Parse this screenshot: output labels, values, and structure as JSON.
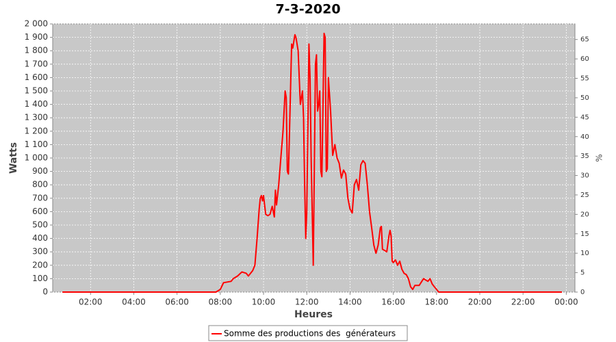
{
  "chart_data": {
    "type": "line",
    "title": "7-3-2020",
    "x_label": "Heures",
    "y_label": "Watts",
    "y2_label": "%",
    "x": [
      0.7,
      7.8,
      8.0,
      8.15,
      8.5,
      8.6,
      8.8,
      9.0,
      9.2,
      9.3,
      9.5,
      9.6,
      9.7,
      9.8,
      9.85,
      9.9,
      9.95,
      10.0,
      10.05,
      10.1,
      10.2,
      10.3,
      10.4,
      10.5,
      10.55,
      10.6,
      10.7,
      10.8,
      10.9,
      11.0,
      11.05,
      11.1,
      11.15,
      11.2,
      11.3,
      11.35,
      11.45,
      11.5,
      11.6,
      11.7,
      11.75,
      11.8,
      11.85,
      11.9,
      11.95,
      12.0,
      12.1,
      12.15,
      12.2,
      12.3,
      12.4,
      12.45,
      12.5,
      12.55,
      12.6,
      12.65,
      12.7,
      12.8,
      12.85,
      12.9,
      12.95,
      13.0,
      13.1,
      13.2,
      13.3,
      13.4,
      13.5,
      13.6,
      13.7,
      13.8,
      13.9,
      14.0,
      14.1,
      14.2,
      14.3,
      14.4,
      14.5,
      14.6,
      14.7,
      14.8,
      14.9,
      15.0,
      15.1,
      15.2,
      15.3,
      15.4,
      15.45,
      15.5,
      15.6,
      15.7,
      15.8,
      15.85,
      15.9,
      15.95,
      16.0,
      16.1,
      16.2,
      16.3,
      16.4,
      16.5,
      16.6,
      16.7,
      16.8,
      16.9,
      17.0,
      17.2,
      17.4,
      17.5,
      17.6,
      17.7,
      17.8,
      17.9,
      18.1,
      23.8
    ],
    "series": [
      {
        "name": "Somme des productions des  générateurs",
        "color": "#ff0000",
        "values": [
          0,
          0,
          20,
          70,
          80,
          100,
          120,
          150,
          140,
          120,
          160,
          200,
          400,
          620,
          700,
          720,
          680,
          720,
          650,
          580,
          570,
          580,
          640,
          560,
          760,
          650,
          800,
          1000,
          1200,
          1500,
          1450,
          900,
          880,
          1200,
          1850,
          1820,
          1920,
          1900,
          1800,
          1400,
          1450,
          1500,
          1300,
          800,
          400,
          600,
          1850,
          1600,
          1000,
          200,
          1700,
          1770,
          1350,
          1400,
          1500,
          900,
          860,
          1930,
          1900,
          900,
          920,
          1600,
          1350,
          1020,
          1100,
          1000,
          960,
          850,
          910,
          880,
          700,
          620,
          590,
          800,
          840,
          760,
          950,
          980,
          960,
          800,
          600,
          480,
          350,
          290,
          350,
          480,
          490,
          320,
          310,
          300,
          420,
          460,
          420,
          230,
          220,
          240,
          200,
          230,
          170,
          140,
          130,
          100,
          40,
          20,
          50,
          50,
          100,
          90,
          80,
          100,
          60,
          40,
          0,
          0
        ]
      }
    ],
    "xlim": [
      0.25,
      24.4
    ],
    "xticks": [
      {
        "value": 2,
        "label": "02:00"
      },
      {
        "value": 4,
        "label": "04:00"
      },
      {
        "value": 6,
        "label": "06:00"
      },
      {
        "value": 8,
        "label": "08:00"
      },
      {
        "value": 10,
        "label": "10:00"
      },
      {
        "value": 12,
        "label": "12:00"
      },
      {
        "value": 14,
        "label": "14:00"
      },
      {
        "value": 16,
        "label": "16:00"
      },
      {
        "value": 18,
        "label": "18:00"
      },
      {
        "value": 20,
        "label": "20:00"
      },
      {
        "value": 22,
        "label": "22:00"
      },
      {
        "value": 24,
        "label": "00:00"
      }
    ],
    "ylim": [
      0,
      2000
    ],
    "yticks": [
      0,
      100,
      200,
      300,
      400,
      500,
      600,
      700,
      800,
      900,
      {
        "value": 1000,
        "label": "1 000"
      },
      {
        "value": 1100,
        "label": "1 100"
      },
      {
        "value": 1200,
        "label": "1 200"
      },
      {
        "value": 1300,
        "label": "1 300"
      },
      {
        "value": 1400,
        "label": "1 400"
      },
      {
        "value": 1500,
        "label": "1 500"
      },
      {
        "value": 1600,
        "label": "1 600"
      },
      {
        "value": 1700,
        "label": "1 700"
      },
      {
        "value": 1800,
        "label": "1 800"
      },
      {
        "value": 1900,
        "label": "1 900"
      },
      {
        "value": 2000,
        "label": "2 000"
      }
    ],
    "y2lim": [
      0,
      69
    ],
    "y2ticks": [
      0,
      5,
      10,
      15,
      20,
      25,
      30,
      35,
      40,
      45,
      50,
      55,
      60,
      65
    ],
    "grid": true,
    "legend": "bottom"
  }
}
